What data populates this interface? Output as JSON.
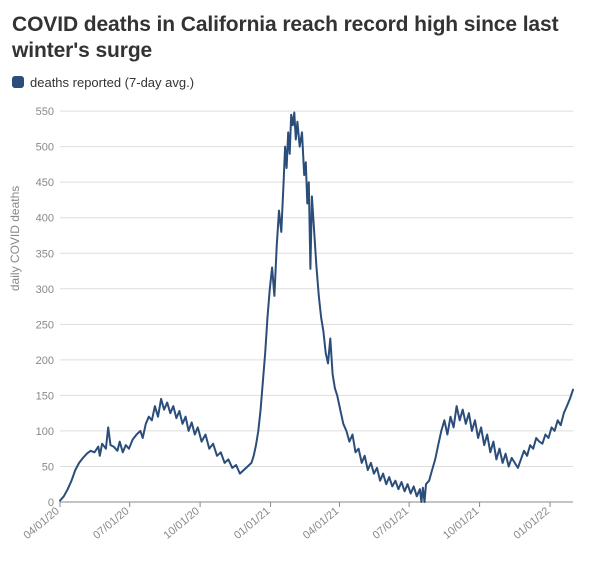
{
  "title": "COVID deaths in California reach record high since last winter's surge",
  "legend": {
    "swatch_color": "#2b4d7a",
    "label": "deaths reported (7-day avg.)"
  },
  "chart": {
    "type": "line",
    "y_axis_label": "daily COVID deaths",
    "line_color": "#2b4d7a",
    "line_width": 2,
    "background_color": "#ffffff",
    "grid_color": "#dddddd",
    "axis_color": "#888888",
    "tick_font_color": "#888888",
    "tick_fontsize": 11,
    "ylim": [
      0,
      560
    ],
    "ytick_step": 50,
    "y_ticks": [
      0,
      50,
      100,
      150,
      200,
      250,
      300,
      350,
      400,
      450,
      500,
      550
    ],
    "x_domain_days": [
      0,
      670
    ],
    "x_ticks": [
      {
        "day": 0,
        "label": "04/01/20"
      },
      {
        "day": 91,
        "label": "07/01/20"
      },
      {
        "day": 183,
        "label": "10/01/20"
      },
      {
        "day": 275,
        "label": "01/01/21"
      },
      {
        "day": 365,
        "label": "04/01/21"
      },
      {
        "day": 456,
        "label": "07/01/21"
      },
      {
        "day": 548,
        "label": "10/01/21"
      },
      {
        "day": 640,
        "label": "01/01/22"
      }
    ],
    "series": [
      {
        "day": 0,
        "v": 2
      },
      {
        "day": 5,
        "v": 8
      },
      {
        "day": 10,
        "v": 18
      },
      {
        "day": 15,
        "v": 30
      },
      {
        "day": 20,
        "v": 45
      },
      {
        "day": 25,
        "v": 55
      },
      {
        "day": 30,
        "v": 62
      },
      {
        "day": 35,
        "v": 68
      },
      {
        "day": 40,
        "v": 72
      },
      {
        "day": 45,
        "v": 70
      },
      {
        "day": 50,
        "v": 78
      },
      {
        "day": 52,
        "v": 65
      },
      {
        "day": 55,
        "v": 82
      },
      {
        "day": 60,
        "v": 75
      },
      {
        "day": 63,
        "v": 105
      },
      {
        "day": 66,
        "v": 80
      },
      {
        "day": 70,
        "v": 78
      },
      {
        "day": 75,
        "v": 72
      },
      {
        "day": 78,
        "v": 85
      },
      {
        "day": 82,
        "v": 70
      },
      {
        "day": 86,
        "v": 80
      },
      {
        "day": 90,
        "v": 75
      },
      {
        "day": 95,
        "v": 88
      },
      {
        "day": 100,
        "v": 95
      },
      {
        "day": 105,
        "v": 100
      },
      {
        "day": 108,
        "v": 90
      },
      {
        "day": 112,
        "v": 110
      },
      {
        "day": 116,
        "v": 120
      },
      {
        "day": 120,
        "v": 115
      },
      {
        "day": 124,
        "v": 135
      },
      {
        "day": 128,
        "v": 120
      },
      {
        "day": 132,
        "v": 145
      },
      {
        "day": 136,
        "v": 130
      },
      {
        "day": 140,
        "v": 140
      },
      {
        "day": 144,
        "v": 125
      },
      {
        "day": 148,
        "v": 135
      },
      {
        "day": 152,
        "v": 118
      },
      {
        "day": 156,
        "v": 128
      },
      {
        "day": 160,
        "v": 110
      },
      {
        "day": 164,
        "v": 120
      },
      {
        "day": 168,
        "v": 100
      },
      {
        "day": 172,
        "v": 112
      },
      {
        "day": 176,
        "v": 95
      },
      {
        "day": 180,
        "v": 105
      },
      {
        "day": 185,
        "v": 85
      },
      {
        "day": 190,
        "v": 95
      },
      {
        "day": 195,
        "v": 75
      },
      {
        "day": 200,
        "v": 82
      },
      {
        "day": 205,
        "v": 65
      },
      {
        "day": 210,
        "v": 70
      },
      {
        "day": 215,
        "v": 55
      },
      {
        "day": 220,
        "v": 60
      },
      {
        "day": 225,
        "v": 48
      },
      {
        "day": 230,
        "v": 52
      },
      {
        "day": 235,
        "v": 40
      },
      {
        "day": 240,
        "v": 45
      },
      {
        "day": 245,
        "v": 50
      },
      {
        "day": 250,
        "v": 55
      },
      {
        "day": 253,
        "v": 65
      },
      {
        "day": 256,
        "v": 80
      },
      {
        "day": 259,
        "v": 100
      },
      {
        "day": 262,
        "v": 130
      },
      {
        "day": 265,
        "v": 170
      },
      {
        "day": 268,
        "v": 210
      },
      {
        "day": 271,
        "v": 260
      },
      {
        "day": 274,
        "v": 300
      },
      {
        "day": 277,
        "v": 330
      },
      {
        "day": 280,
        "v": 290
      },
      {
        "day": 283,
        "v": 360
      },
      {
        "day": 286,
        "v": 410
      },
      {
        "day": 289,
        "v": 380
      },
      {
        "day": 292,
        "v": 450
      },
      {
        "day": 294,
        "v": 500
      },
      {
        "day": 296,
        "v": 470
      },
      {
        "day": 298,
        "v": 520
      },
      {
        "day": 300,
        "v": 490
      },
      {
        "day": 302,
        "v": 545
      },
      {
        "day": 304,
        "v": 530
      },
      {
        "day": 306,
        "v": 548
      },
      {
        "day": 308,
        "v": 510
      },
      {
        "day": 310,
        "v": 535
      },
      {
        "day": 313,
        "v": 500
      },
      {
        "day": 316,
        "v": 520
      },
      {
        "day": 319,
        "v": 460
      },
      {
        "day": 321,
        "v": 478
      },
      {
        "day": 323,
        "v": 420
      },
      {
        "day": 325,
        "v": 450
      },
      {
        "day": 327,
        "v": 328
      },
      {
        "day": 329,
        "v": 430
      },
      {
        "day": 332,
        "v": 380
      },
      {
        "day": 335,
        "v": 330
      },
      {
        "day": 338,
        "v": 290
      },
      {
        "day": 341,
        "v": 260
      },
      {
        "day": 344,
        "v": 240
      },
      {
        "day": 347,
        "v": 210
      },
      {
        "day": 350,
        "v": 195
      },
      {
        "day": 353,
        "v": 230
      },
      {
        "day": 356,
        "v": 180
      },
      {
        "day": 359,
        "v": 160
      },
      {
        "day": 362,
        "v": 150
      },
      {
        "day": 366,
        "v": 130
      },
      {
        "day": 370,
        "v": 110
      },
      {
        "day": 374,
        "v": 100
      },
      {
        "day": 378,
        "v": 85
      },
      {
        "day": 382,
        "v": 95
      },
      {
        "day": 386,
        "v": 70
      },
      {
        "day": 390,
        "v": 75
      },
      {
        "day": 394,
        "v": 55
      },
      {
        "day": 398,
        "v": 65
      },
      {
        "day": 402,
        "v": 45
      },
      {
        "day": 406,
        "v": 55
      },
      {
        "day": 410,
        "v": 40
      },
      {
        "day": 414,
        "v": 48
      },
      {
        "day": 418,
        "v": 30
      },
      {
        "day": 422,
        "v": 40
      },
      {
        "day": 426,
        "v": 25
      },
      {
        "day": 430,
        "v": 35
      },
      {
        "day": 434,
        "v": 22
      },
      {
        "day": 438,
        "v": 30
      },
      {
        "day": 442,
        "v": 18
      },
      {
        "day": 446,
        "v": 28
      },
      {
        "day": 450,
        "v": 15
      },
      {
        "day": 454,
        "v": 25
      },
      {
        "day": 458,
        "v": 12
      },
      {
        "day": 462,
        "v": 22
      },
      {
        "day": 466,
        "v": 8
      },
      {
        "day": 470,
        "v": 18
      },
      {
        "day": 472,
        "v": 0
      },
      {
        "day": 474,
        "v": 20
      },
      {
        "day": 476,
        "v": 0
      },
      {
        "day": 478,
        "v": 25
      },
      {
        "day": 482,
        "v": 30
      },
      {
        "day": 486,
        "v": 45
      },
      {
        "day": 490,
        "v": 60
      },
      {
        "day": 494,
        "v": 80
      },
      {
        "day": 498,
        "v": 100
      },
      {
        "day": 502,
        "v": 115
      },
      {
        "day": 506,
        "v": 95
      },
      {
        "day": 510,
        "v": 120
      },
      {
        "day": 514,
        "v": 105
      },
      {
        "day": 518,
        "v": 135
      },
      {
        "day": 522,
        "v": 115
      },
      {
        "day": 526,
        "v": 130
      },
      {
        "day": 530,
        "v": 110
      },
      {
        "day": 534,
        "v": 125
      },
      {
        "day": 538,
        "v": 100
      },
      {
        "day": 542,
        "v": 115
      },
      {
        "day": 546,
        "v": 90
      },
      {
        "day": 550,
        "v": 105
      },
      {
        "day": 554,
        "v": 80
      },
      {
        "day": 558,
        "v": 95
      },
      {
        "day": 562,
        "v": 70
      },
      {
        "day": 566,
        "v": 85
      },
      {
        "day": 570,
        "v": 60
      },
      {
        "day": 574,
        "v": 75
      },
      {
        "day": 578,
        "v": 55
      },
      {
        "day": 582,
        "v": 68
      },
      {
        "day": 586,
        "v": 50
      },
      {
        "day": 590,
        "v": 62
      },
      {
        "day": 594,
        "v": 55
      },
      {
        "day": 598,
        "v": 48
      },
      {
        "day": 602,
        "v": 60
      },
      {
        "day": 606,
        "v": 72
      },
      {
        "day": 610,
        "v": 65
      },
      {
        "day": 614,
        "v": 80
      },
      {
        "day": 618,
        "v": 75
      },
      {
        "day": 622,
        "v": 90
      },
      {
        "day": 626,
        "v": 85
      },
      {
        "day": 630,
        "v": 82
      },
      {
        "day": 634,
        "v": 95
      },
      {
        "day": 638,
        "v": 90
      },
      {
        "day": 642,
        "v": 105
      },
      {
        "day": 646,
        "v": 100
      },
      {
        "day": 650,
        "v": 115
      },
      {
        "day": 654,
        "v": 108
      },
      {
        "day": 658,
        "v": 125
      },
      {
        "day": 662,
        "v": 135
      },
      {
        "day": 666,
        "v": 145
      },
      {
        "day": 670,
        "v": 158
      }
    ]
  }
}
